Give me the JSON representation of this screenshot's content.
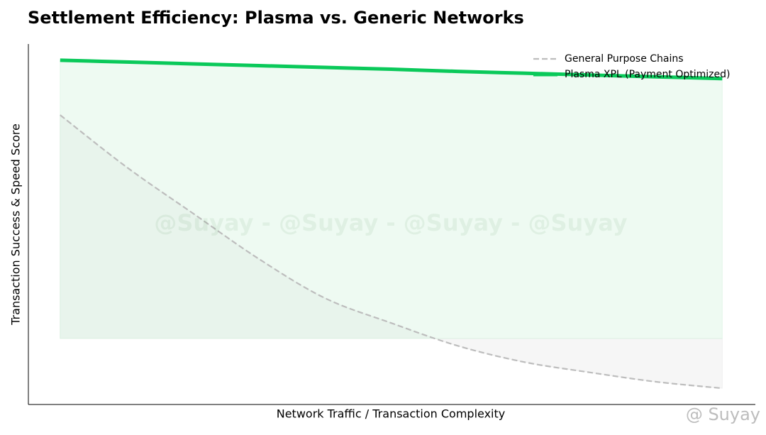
{
  "chart_data": {
    "type": "line",
    "title": "Settlement Efficiency: Plasma vs. Generic Networks",
    "x_label": "Network Traffic / Transaction Complexity",
    "y_label": "Transaction Success & Speed Score",
    "x": [
      0,
      1,
      2,
      3,
      4,
      5,
      6,
      7,
      8,
      9,
      10
    ],
    "series": [
      {
        "name": "General Purpose Chains",
        "color": "#bdbdbd",
        "dash": true,
        "fill_color": "#e0e0e0",
        "values": [
          80.3,
          65.9,
          53.1,
          40.4,
          29.5,
          22.6,
          16.3,
          11.8,
          8.9,
          6.3,
          4.5
        ]
      },
      {
        "name": "Plasma XPL (Payment Optimized)",
        "color": "#0ac95a",
        "dash": false,
        "fill_color": "#c8f0d4",
        "values": [
          95.5,
          95.0,
          94.5,
          94.0,
          93.5,
          93.0,
          92.4,
          91.9,
          91.4,
          90.9,
          90.4
        ]
      }
    ],
    "fill_base": 18.3,
    "xlim": [
      -0.48,
      10.5
    ],
    "ylim": [
      0,
      100
    ],
    "legend": "upper right",
    "watermark": "@Suyay - @Suyay - @Suyay - @Suyay",
    "signature": "@ Suyay"
  }
}
